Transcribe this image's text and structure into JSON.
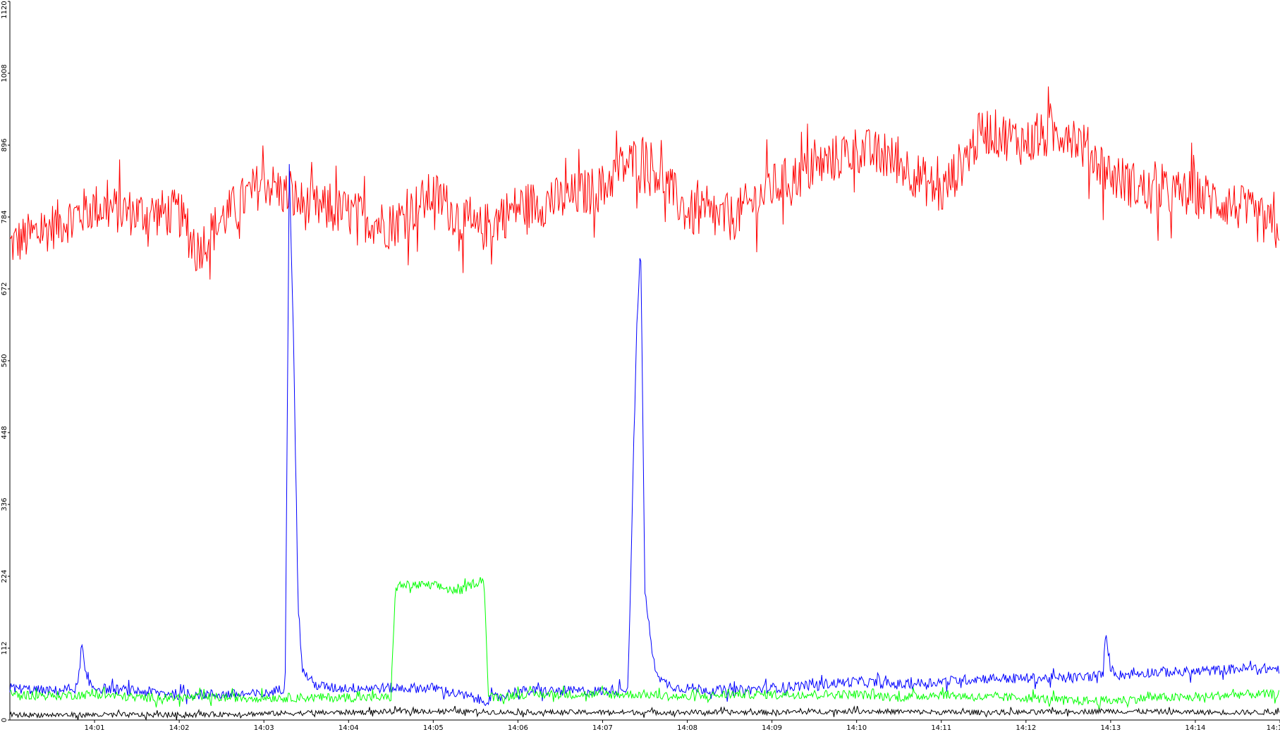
{
  "chart_data": {
    "type": "line",
    "title": "",
    "xlabel": "",
    "ylabel": "",
    "ylim": [
      0,
      1120
    ],
    "y_ticks": [
      0,
      112,
      224,
      336,
      448,
      560,
      672,
      784,
      896,
      1008,
      1120
    ],
    "x_ticks": [
      "14:01",
      "14:02",
      "14:03",
      "14:04",
      "14:05",
      "14:06",
      "14:07",
      "14:08",
      "14:09",
      "14:10",
      "14:11",
      "14:12",
      "14:13",
      "14:14",
      "14:1"
    ],
    "x_range_minutes": [
      0,
      15
    ],
    "x_tick_minutes": [
      1,
      2,
      3,
      4,
      5,
      6,
      7,
      8,
      9,
      10,
      11,
      12,
      13,
      14,
      15
    ],
    "grid": false,
    "legend": "none",
    "series": [
      {
        "color": "#ff0000",
        "x_minutes": [
          0.0,
          0.5,
          1.0,
          1.5,
          2.0,
          2.2,
          2.5,
          3.0,
          3.5,
          4.0,
          4.5,
          5.0,
          5.5,
          6.0,
          6.5,
          7.0,
          7.2,
          7.5,
          8.0,
          8.5,
          9.0,
          9.5,
          10.0,
          10.5,
          11.0,
          11.5,
          12.0,
          12.5,
          13.0,
          13.5,
          14.0,
          14.5,
          15.0
        ],
        "values": [
          740,
          770,
          800,
          790,
          790,
          730,
          780,
          840,
          800,
          790,
          770,
          820,
          760,
          800,
          810,
          830,
          860,
          880,
          790,
          780,
          830,
          860,
          890,
          870,
          820,
          920,
          900,
          920,
          850,
          820,
          820,
          800,
          760
        ]
      },
      {
        "color": "#0000ff",
        "x_minutes": [
          0.0,
          0.5,
          0.8,
          0.85,
          0.9,
          1.0,
          1.5,
          2.0,
          2.5,
          3.0,
          3.25,
          3.3,
          3.35,
          3.4,
          3.45,
          3.5,
          3.6,
          3.8,
          4.0,
          4.5,
          5.0,
          5.3,
          5.6,
          6.0,
          6.5,
          7.0,
          7.3,
          7.4,
          7.45,
          7.5,
          7.6,
          7.7,
          7.9,
          8.0,
          8.5,
          9.0,
          9.5,
          10.0,
          10.5,
          11.0,
          11.5,
          12.0,
          12.5,
          12.9,
          12.95,
          13.0,
          13.1,
          13.5,
          14.0,
          14.5,
          15.0
        ],
        "values": [
          50,
          45,
          50,
          120,
          60,
          50,
          45,
          40,
          40,
          40,
          50,
          860,
          600,
          200,
          80,
          70,
          55,
          50,
          50,
          50,
          50,
          40,
          30,
          45,
          45,
          45,
          50,
          600,
          740,
          200,
          90,
          60,
          50,
          50,
          45,
          50,
          55,
          60,
          55,
          60,
          65,
          65,
          65,
          70,
          130,
          80,
          70,
          75,
          75,
          80,
          80
        ]
      },
      {
        "color": "#00ff00",
        "x_minutes": [
          0.0,
          0.5,
          1.0,
          1.5,
          2.0,
          2.5,
          3.0,
          3.5,
          4.0,
          4.5,
          4.55,
          4.6,
          5.0,
          5.3,
          5.5,
          5.6,
          5.65,
          5.7,
          6.0,
          6.5,
          7.0,
          7.5,
          8.0,
          8.5,
          9.0,
          9.5,
          10.0,
          10.5,
          11.0,
          11.5,
          12.0,
          12.5,
          13.0,
          13.5,
          14.0,
          14.5,
          15.0
        ],
        "values": [
          40,
          38,
          40,
          35,
          35,
          35,
          35,
          35,
          35,
          35,
          200,
          210,
          210,
          200,
          215,
          220,
          40,
          35,
          40,
          40,
          40,
          40,
          35,
          40,
          40,
          40,
          40,
          35,
          40,
          35,
          35,
          30,
          30,
          35,
          35,
          40,
          40
        ]
      },
      {
        "color": "#000000",
        "x_minutes": [
          0.0,
          1.0,
          2.0,
          3.0,
          4.0,
          5.0,
          6.0,
          7.0,
          8.0,
          9.0,
          10.0,
          11.0,
          12.0,
          13.0,
          14.0,
          15.0
        ],
        "values": [
          8,
          8,
          8,
          10,
          12,
          14,
          12,
          12,
          12,
          12,
          14,
          12,
          12,
          14,
          12,
          12
        ]
      }
    ]
  }
}
